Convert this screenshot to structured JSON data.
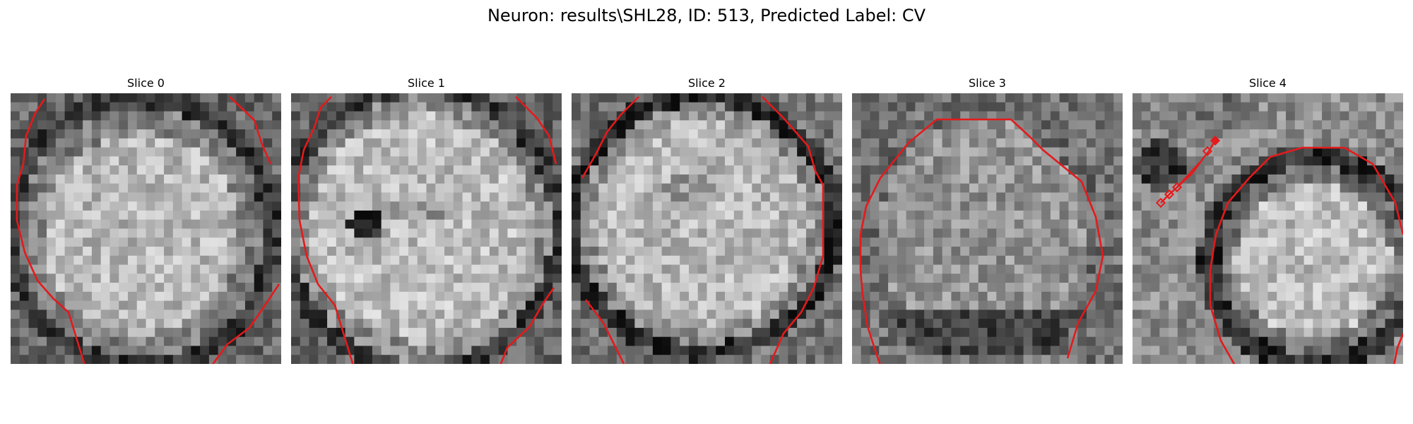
{
  "figure": {
    "title": "Neuron: results\\SHL28, ID: 513, Predicted Label: CV"
  },
  "panels": [
    {
      "title": "Slice 0"
    },
    {
      "title": "Slice 1"
    },
    {
      "title": "Slice 2"
    },
    {
      "title": "Slice 3"
    },
    {
      "title": "Slice 4"
    }
  ],
  "colors": {
    "contour": "#e41a1c",
    "background": "#ffffff"
  }
}
